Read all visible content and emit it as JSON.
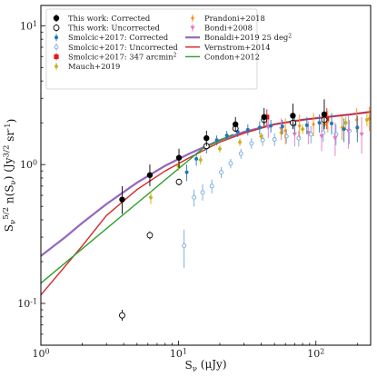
{
  "chart_data": {
    "type": "scatter",
    "xlabel": "S_ν (μJy)",
    "ylabel": "S_ν^{5/2} n(S_ν) (Jy^{3/2} sr^{-1})",
    "xscale": "log",
    "yscale": "log",
    "xlim": [
      1,
      250
    ],
    "ylim": [
      0.05,
      14
    ],
    "x_ticks": [
      {
        "value": 1,
        "label": "10^0"
      },
      {
        "value": 10,
        "label": "10^1"
      },
      {
        "value": 100,
        "label": "10^2"
      }
    ],
    "y_ticks": [
      {
        "value": 0.1,
        "label": "10^-1"
      },
      {
        "value": 1,
        "label": "10^0"
      },
      {
        "value": 10,
        "label": "10^1"
      }
    ],
    "legend": {
      "placement": "top",
      "columns": 2,
      "entries": [
        {
          "label": "This work: Corrected",
          "series": "this_work_corrected"
        },
        {
          "label": "This work: Uncorrected",
          "series": "this_work_uncorrected"
        },
        {
          "label": "Smolcic+2017: Corrected",
          "series": "smolcic_corrected"
        },
        {
          "label": "Smolcic+2017: Uncorrected",
          "series": "smolcic_uncorrected"
        },
        {
          "label": "Smolcic+2017: 347 arcmin²",
          "series": "smolcic_347"
        },
        {
          "label": "Mauch+2019",
          "series": "mauch"
        },
        {
          "label": "Prandoni+2018",
          "series": "prandoni"
        },
        {
          "label": "Bondi+2008",
          "series": "bondi"
        },
        {
          "label": "Bonaldi+2019 25 deg²",
          "series": "bonaldi"
        },
        {
          "label": "Vernstrom+2014",
          "series": "vernstrom"
        },
        {
          "label": "Condon+2012",
          "series": "condon"
        }
      ]
    },
    "series": [
      {
        "name": "This work: Corrected",
        "key": "this_work_corrected",
        "kind": "points",
        "marker": "filled-circle",
        "color": "#000000",
        "points": [
          {
            "x": 3.9,
            "y": 0.56,
            "lo": 0.44,
            "hi": 0.7
          },
          {
            "x": 6.2,
            "y": 0.84,
            "lo": 0.7,
            "hi": 1.0
          },
          {
            "x": 10.1,
            "y": 1.12,
            "lo": 0.95,
            "hi": 1.3
          },
          {
            "x": 16.0,
            "y": 1.55,
            "lo": 1.36,
            "hi": 1.75
          },
          {
            "x": 26.0,
            "y": 1.95,
            "lo": 1.72,
            "hi": 2.2
          },
          {
            "x": 42.0,
            "y": 2.2,
            "lo": 1.9,
            "hi": 2.55
          },
          {
            "x": 68.0,
            "y": 2.25,
            "lo": 1.85,
            "hi": 2.75
          },
          {
            "x": 115.0,
            "y": 2.3,
            "lo": 1.8,
            "hi": 2.95
          }
        ]
      },
      {
        "name": "This work: Uncorrected",
        "key": "this_work_uncorrected",
        "kind": "points",
        "marker": "open-circle",
        "color": "#000000",
        "points": [
          {
            "x": 3.9,
            "y": 0.082,
            "lo": 0.075,
            "hi": 0.09
          },
          {
            "x": 6.2,
            "y": 0.31,
            "lo": 0.29,
            "hi": 0.33
          },
          {
            "x": 10.1,
            "y": 0.75,
            "lo": 0.71,
            "hi": 0.79
          },
          {
            "x": 16.0,
            "y": 1.36,
            "lo": 1.3,
            "hi": 1.43
          },
          {
            "x": 26.0,
            "y": 1.82,
            "lo": 1.72,
            "hi": 1.92
          },
          {
            "x": 42.0,
            "y": 2.1,
            "lo": 1.95,
            "hi": 2.25
          },
          {
            "x": 68.0,
            "y": 2.0,
            "lo": 1.8,
            "hi": 2.2
          },
          {
            "x": 115.0,
            "y": 2.1,
            "lo": 1.85,
            "hi": 2.4
          }
        ]
      },
      {
        "name": "Smolcic+2017: Corrected",
        "key": "smolcic_corrected",
        "kind": "points",
        "marker": "filled-circle-small",
        "color": "#1f77b4",
        "points": [
          {
            "x": 11.5,
            "y": 0.88,
            "lo": 0.76,
            "hi": 1.0
          },
          {
            "x": 13.5,
            "y": 1.1,
            "lo": 0.98,
            "hi": 1.22
          },
          {
            "x": 16.0,
            "y": 1.32,
            "lo": 1.2,
            "hi": 1.45
          },
          {
            "x": 19.0,
            "y": 1.5,
            "lo": 1.38,
            "hi": 1.62
          },
          {
            "x": 22.5,
            "y": 1.62,
            "lo": 1.5,
            "hi": 1.75
          },
          {
            "x": 27.0,
            "y": 1.72,
            "lo": 1.58,
            "hi": 1.85
          },
          {
            "x": 32.0,
            "y": 1.78,
            "lo": 1.62,
            "hi": 1.95
          },
          {
            "x": 39.0,
            "y": 1.85,
            "lo": 1.65,
            "hi": 2.05
          },
          {
            "x": 47.0,
            "y": 1.9,
            "lo": 1.7,
            "hi": 2.1
          },
          {
            "x": 57.0,
            "y": 1.88,
            "lo": 1.65,
            "hi": 2.1
          },
          {
            "x": 70.0,
            "y": 1.95,
            "lo": 1.7,
            "hi": 2.2
          },
          {
            "x": 86.0,
            "y": 1.92,
            "lo": 1.65,
            "hi": 2.2
          },
          {
            "x": 106.0,
            "y": 2.0,
            "lo": 1.7,
            "hi": 2.3
          },
          {
            "x": 130.0,
            "y": 1.98,
            "lo": 1.65,
            "hi": 2.35
          },
          {
            "x": 160.0,
            "y": 1.8,
            "lo": 1.45,
            "hi": 2.15
          },
          {
            "x": 200.0,
            "y": 1.85,
            "lo": 1.45,
            "hi": 2.25
          }
        ]
      },
      {
        "name": "Smolcic+2017: Uncorrected",
        "key": "smolcic_uncorrected",
        "kind": "points",
        "marker": "open-circle-small",
        "color": "#6fa8dc",
        "points": [
          {
            "x": 11.0,
            "y": 0.26,
            "lo": 0.18,
            "hi": 0.34
          },
          {
            "x": 13.0,
            "y": 0.58,
            "lo": 0.5,
            "hi": 0.66
          },
          {
            "x": 15.0,
            "y": 0.63,
            "lo": 0.55,
            "hi": 0.72
          },
          {
            "x": 17.5,
            "y": 0.7,
            "lo": 0.62,
            "hi": 0.78
          },
          {
            "x": 20.5,
            "y": 0.88,
            "lo": 0.8,
            "hi": 0.96
          },
          {
            "x": 24.0,
            "y": 1.02,
            "lo": 0.94,
            "hi": 1.1
          },
          {
            "x": 28.5,
            "y": 1.2,
            "lo": 1.1,
            "hi": 1.3
          },
          {
            "x": 34.0,
            "y": 1.42,
            "lo": 1.3,
            "hi": 1.55
          },
          {
            "x": 41.0,
            "y": 1.5,
            "lo": 1.36,
            "hi": 1.65
          },
          {
            "x": 50.0,
            "y": 1.52,
            "lo": 1.36,
            "hi": 1.68
          },
          {
            "x": 61.0,
            "y": 1.6,
            "lo": 1.42,
            "hi": 1.8
          },
          {
            "x": 75.0,
            "y": 1.55,
            "lo": 1.35,
            "hi": 1.75
          },
          {
            "x": 92.0,
            "y": 1.65,
            "lo": 1.42,
            "hi": 1.9
          },
          {
            "x": 113.0,
            "y": 1.7,
            "lo": 1.45,
            "hi": 1.95
          },
          {
            "x": 140.0,
            "y": 1.65,
            "lo": 1.38,
            "hi": 1.95
          },
          {
            "x": 175.0,
            "y": 1.75,
            "lo": 1.4,
            "hi": 2.1
          }
        ]
      },
      {
        "name": "Smolcic+2017: 347 arcmin²",
        "key": "smolcic_347",
        "kind": "points",
        "marker": "filled-square",
        "color": "#e41a1c",
        "points": [
          {
            "x": 44.0,
            "y": 2.2,
            "lo": 1.9,
            "hi": 2.5
          },
          {
            "x": 120.0,
            "y": 2.15,
            "lo": 1.8,
            "hi": 2.55
          }
        ]
      },
      {
        "name": "Mauch+2019",
        "key": "mauch",
        "kind": "points",
        "marker": "filled-diamond",
        "color": "#c9b21a",
        "points": [
          {
            "x": 6.3,
            "y": 0.58,
            "lo": 0.52,
            "hi": 0.64
          },
          {
            "x": 10.0,
            "y": 0.98,
            "lo": 0.9,
            "hi": 1.06
          },
          {
            "x": 14.5,
            "y": 1.08,
            "lo": 1.0,
            "hi": 1.16
          },
          {
            "x": 20.0,
            "y": 1.3,
            "lo": 1.22,
            "hi": 1.38
          },
          {
            "x": 28.0,
            "y": 1.45,
            "lo": 1.36,
            "hi": 1.55
          },
          {
            "x": 40.0,
            "y": 1.6,
            "lo": 1.5,
            "hi": 1.7
          },
          {
            "x": 56.0,
            "y": 1.7,
            "lo": 1.58,
            "hi": 1.82
          },
          {
            "x": 80.0,
            "y": 1.8,
            "lo": 1.66,
            "hi": 1.95
          },
          {
            "x": 115.0,
            "y": 1.95,
            "lo": 1.78,
            "hi": 2.12
          },
          {
            "x": 165.0,
            "y": 2.0,
            "lo": 1.8,
            "hi": 2.2
          },
          {
            "x": 235.0,
            "y": 2.1,
            "lo": 1.88,
            "hi": 2.32
          }
        ]
      },
      {
        "name": "Prandoni+2018",
        "key": "prandoni",
        "kind": "points",
        "marker": "filled-diamond-small",
        "color": "#ff8c1a",
        "points": [
          {
            "x": 60.0,
            "y": 1.75,
            "lo": 1.4,
            "hi": 2.15
          },
          {
            "x": 76.0,
            "y": 1.9,
            "lo": 1.55,
            "hi": 2.3
          },
          {
            "x": 96.0,
            "y": 1.95,
            "lo": 1.6,
            "hi": 2.35
          },
          {
            "x": 122.0,
            "y": 2.05,
            "lo": 1.7,
            "hi": 2.45
          },
          {
            "x": 155.0,
            "y": 1.85,
            "lo": 1.5,
            "hi": 2.25
          },
          {
            "x": 198.0,
            "y": 2.1,
            "lo": 1.7,
            "hi": 2.55
          },
          {
            "x": 245.0,
            "y": 2.15,
            "lo": 1.75,
            "hi": 2.6
          }
        ]
      },
      {
        "name": "Bondi+2008",
        "key": "bondi",
        "kind": "points",
        "marker": "triangle-down",
        "color": "#e377c2",
        "points": [
          {
            "x": 45.0,
            "y": 1.85,
            "lo": 1.55,
            "hi": 2.2
          },
          {
            "x": 56.0,
            "y": 1.8,
            "lo": 1.5,
            "hi": 2.15
          },
          {
            "x": 70.0,
            "y": 1.65,
            "lo": 1.35,
            "hi": 2.0
          },
          {
            "x": 88.0,
            "y": 1.7,
            "lo": 1.4,
            "hi": 2.05
          },
          {
            "x": 110.0,
            "y": 1.6,
            "lo": 1.25,
            "hi": 2.0
          },
          {
            "x": 138.0,
            "y": 1.55,
            "lo": 1.15,
            "hi": 2.0
          },
          {
            "x": 172.0,
            "y": 1.75,
            "lo": 1.3,
            "hi": 2.25
          },
          {
            "x": 215.0,
            "y": 1.65,
            "lo": 1.2,
            "hi": 2.2
          }
        ]
      },
      {
        "name": "Bonaldi+2019 25 deg²",
        "key": "bonaldi",
        "kind": "line",
        "color": "#9467bd",
        "points": [
          {
            "x": 1.0,
            "y": 0.22
          },
          {
            "x": 1.5,
            "y": 0.3
          },
          {
            "x": 2.0,
            "y": 0.38
          },
          {
            "x": 3.0,
            "y": 0.52
          },
          {
            "x": 5.0,
            "y": 0.74
          },
          {
            "x": 8.0,
            "y": 0.98
          },
          {
            "x": 12.0,
            "y": 1.2
          },
          {
            "x": 20.0,
            "y": 1.5
          },
          {
            "x": 30.0,
            "y": 1.72
          },
          {
            "x": 50.0,
            "y": 1.95
          },
          {
            "x": 80.0,
            "y": 2.1
          },
          {
            "x": 120.0,
            "y": 2.2
          },
          {
            "x": 180.0,
            "y": 2.3
          },
          {
            "x": 250.0,
            "y": 2.4
          }
        ]
      },
      {
        "name": "Vernstrom+2014",
        "key": "vernstrom",
        "kind": "line",
        "color": "#d62728",
        "points": [
          {
            "x": 1.0,
            "y": 0.115
          },
          {
            "x": 2.0,
            "y": 0.26
          },
          {
            "x": 3.0,
            "y": 0.43
          },
          {
            "x": 5.0,
            "y": 0.66
          },
          {
            "x": 8.0,
            "y": 0.9
          },
          {
            "x": 12.0,
            "y": 1.12
          },
          {
            "x": 20.0,
            "y": 1.45
          },
          {
            "x": 30.0,
            "y": 1.68
          },
          {
            "x": 50.0,
            "y": 1.95
          },
          {
            "x": 80.0,
            "y": 2.1
          },
          {
            "x": 120.0,
            "y": 2.2
          },
          {
            "x": 180.0,
            "y": 2.3
          },
          {
            "x": 250.0,
            "y": 2.4
          }
        ]
      },
      {
        "name": "Condon+2012",
        "key": "condon",
        "kind": "line",
        "color": "#2ca02c",
        "points": [
          {
            "x": 1.0,
            "y": 0.14
          },
          {
            "x": 15.0,
            "y": 1.3
          },
          {
            "x": 25.0,
            "y": 1.65
          }
        ]
      }
    ]
  }
}
